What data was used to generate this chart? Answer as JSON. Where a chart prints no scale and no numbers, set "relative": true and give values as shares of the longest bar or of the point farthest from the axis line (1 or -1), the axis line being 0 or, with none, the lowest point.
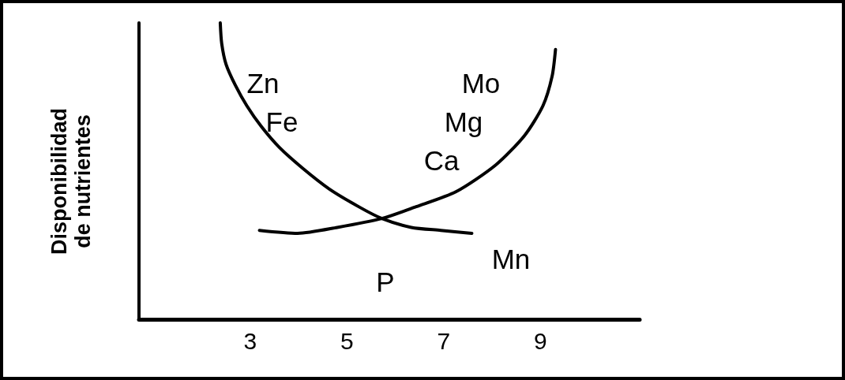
{
  "chart_data": {
    "type": "line",
    "relative": true,
    "ylabel": "Disponibilidad de nutrientes",
    "xlim": [
      0.7,
      11.05
    ],
    "xticks": [
      3,
      5,
      7,
      9
    ],
    "series": [
      {
        "color": "#000000",
        "x": [
          2.38,
          2.41,
          2.5,
          2.69,
          2.93,
          3.23,
          3.6,
          4.08,
          4.63,
          5.24,
          5.72,
          6.33,
          6.94,
          7.58
        ],
        "values": [
          1.0,
          0.93,
          0.86,
          0.79,
          0.72,
          0.65,
          0.58,
          0.51,
          0.44,
          0.38,
          0.34,
          0.31,
          0.3,
          0.29
        ]
      },
      {
        "color": "#000000",
        "x": [
          3.19,
          3.98,
          4.8,
          5.72,
          6.43,
          7.25,
          8.07,
          8.67,
          9.05,
          9.24,
          9.31
        ],
        "values": [
          0.3,
          0.29,
          0.31,
          0.34,
          0.38,
          0.43,
          0.52,
          0.62,
          0.72,
          0.82,
          0.91
        ]
      }
    ],
    "annotations": [
      "Zn",
      "Fe",
      "Mo",
      "Mg",
      "Ca",
      "Mn",
      "P"
    ]
  }
}
